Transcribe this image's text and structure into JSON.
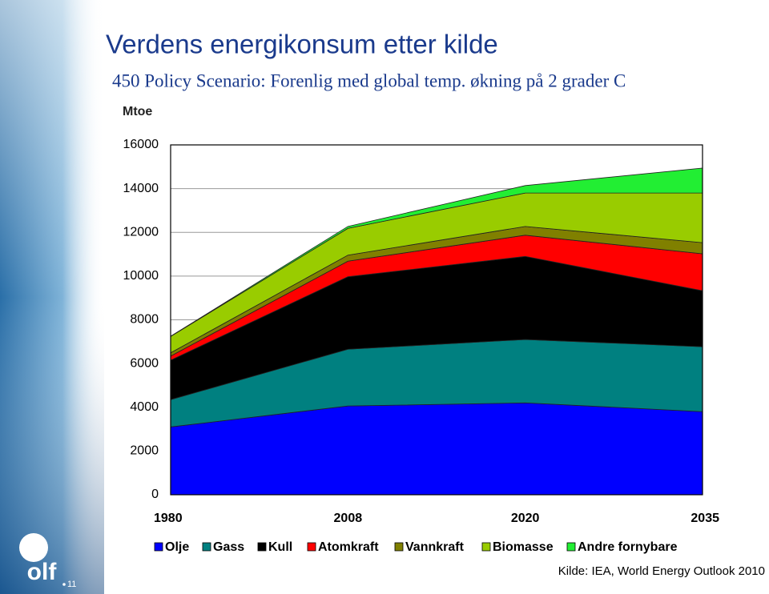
{
  "chart_data": {
    "type": "stacked_area",
    "title": "Verdens energikonsum etter kilde",
    "subtitle": "450 Policy Scenario: Forenlig med global temp. økning på 2 grader C",
    "y_label": "Mtoe",
    "source": "Kilde: IEA, World Energy Outlook 2010",
    "page_number": "11",
    "logo": "olf",
    "categories": [
      "1980",
      "2008",
      "2020",
      "2035"
    ],
    "series": [
      {
        "name": "Olje",
        "color": "#0000ff",
        "values": [
          3100,
          4059,
          4200,
          3800
        ]
      },
      {
        "name": "Gass",
        "color": "#008080",
        "values": [
          1250,
          2596,
          2900,
          2970
        ]
      },
      {
        "name": "Kull",
        "color": "#000000",
        "values": [
          1800,
          3315,
          3800,
          2560
        ]
      },
      {
        "name": "Atomkraft",
        "color": "#ff0000",
        "values": [
          190,
          712,
          970,
          1690
        ]
      },
      {
        "name": "Vannkraft",
        "color": "#808000",
        "values": [
          150,
          276,
          400,
          510
        ]
      },
      {
        "name": "Biomasse",
        "color": "#99cc00",
        "values": [
          750,
          1225,
          1530,
          2270
        ]
      },
      {
        "name": "Andre fornybare",
        "color": "#22ee33",
        "values": [
          10,
          89,
          340,
          1140
        ]
      }
    ],
    "ylim": [
      0,
      16000
    ],
    "yticks": [
      0,
      2000,
      4000,
      6000,
      8000,
      10000,
      12000,
      14000,
      16000
    ],
    "grid": true
  }
}
